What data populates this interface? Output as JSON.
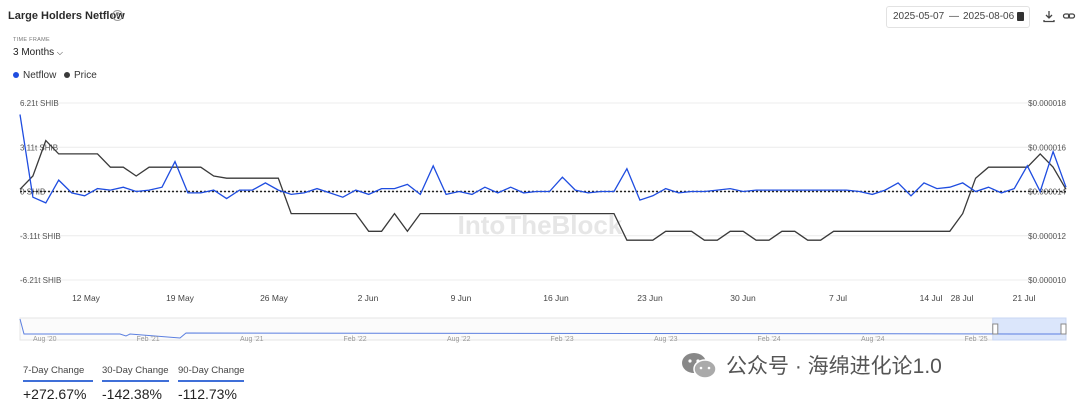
{
  "header": {
    "title": "Large Holders Netflow",
    "date_start": "2025-05-07",
    "date_sep": "—",
    "date_end": "2025-08-06"
  },
  "controls": {
    "timeframe_label": "TIME FRAME",
    "timeframe_value": "3 Months"
  },
  "legend": [
    {
      "name": "Netflow",
      "color": "#1f4de0"
    },
    {
      "name": "Price",
      "color": "#3a3a3a"
    }
  ],
  "watermark": "IntoTheBlock",
  "chart_data": {
    "type": "line",
    "x_ticks": [
      "12 May",
      "19 May",
      "26 May",
      "2 Jun",
      "9 Jun",
      "16 Jun",
      "23 Jun",
      "30 Jun",
      "7 Jul",
      "14 Jul",
      "28 Jul",
      "21 Jul"
    ],
    "y_left_ticks": [
      "6.21t SHIB",
      "3.11t SHIB",
      "0 SHIB",
      "-3.11t SHIB",
      "-6.21t SHIB"
    ],
    "y_right_ticks": [
      "$0.000018",
      "$0.000016",
      "$0.000014",
      "$0.000012",
      "$0.000010"
    ],
    "y_left_range": [
      -6.21,
      6.21
    ],
    "y_right_range": [
      1e-05,
      1.8e-05
    ],
    "series": [
      {
        "name": "Netflow",
        "unit": "t SHIB",
        "color": "#1f4de0",
        "values": [
          5.4,
          -0.4,
          -0.8,
          0.8,
          -0.1,
          -0.3,
          0.2,
          0.1,
          0.3,
          0.0,
          0.1,
          0.3,
          2.1,
          -0.1,
          -0.1,
          0.1,
          -0.5,
          0.1,
          0.1,
          0.6,
          0.1,
          -0.2,
          -0.1,
          0.2,
          -0.1,
          -0.4,
          0.1,
          -0.2,
          0.2,
          0.2,
          0.5,
          -0.2,
          1.8,
          -0.2,
          0.0,
          -0.2,
          0.3,
          -0.1,
          0.3,
          -0.1,
          0.0,
          0.0,
          1.0,
          0.1,
          -0.1,
          0.0,
          0.0,
          1.6,
          -0.6,
          -0.3,
          0.2,
          -0.1,
          0.0,
          0.0,
          0.1,
          0.2,
          0.0,
          0.1,
          0.1,
          0.1,
          0.1,
          0.1,
          0.1,
          0.1,
          0.1,
          0.0,
          -0.2,
          0.1,
          0.6,
          -0.3,
          0.6,
          0.2,
          0.3,
          0.6,
          0.0,
          0.3,
          -0.1,
          0.2,
          1.8,
          0.0,
          2.8,
          0.3
        ]
      },
      {
        "name": "Price",
        "unit": "USD",
        "color": "#3a3a3a",
        "values": [
          1.41e-05,
          1.47e-05,
          1.63e-05,
          1.57e-05,
          1.57e-05,
          1.57e-05,
          1.57e-05,
          1.51e-05,
          1.51e-05,
          1.47e-05,
          1.51e-05,
          1.51e-05,
          1.51e-05,
          1.51e-05,
          1.51e-05,
          1.47e-05,
          1.46e-05,
          1.46e-05,
          1.46e-05,
          1.46e-05,
          1.46e-05,
          1.3e-05,
          1.3e-05,
          1.3e-05,
          1.3e-05,
          1.3e-05,
          1.3e-05,
          1.22e-05,
          1.22e-05,
          1.3e-05,
          1.22e-05,
          1.3e-05,
          1.3e-05,
          1.3e-05,
          1.3e-05,
          1.3e-05,
          1.3e-05,
          1.3e-05,
          1.3e-05,
          1.3e-05,
          1.3e-05,
          1.3e-05,
          1.3e-05,
          1.3e-05,
          1.3e-05,
          1.3e-05,
          1.3e-05,
          1.18e-05,
          1.18e-05,
          1.18e-05,
          1.22e-05,
          1.22e-05,
          1.22e-05,
          1.18e-05,
          1.18e-05,
          1.22e-05,
          1.22e-05,
          1.18e-05,
          1.18e-05,
          1.22e-05,
          1.22e-05,
          1.18e-05,
          1.18e-05,
          1.22e-05,
          1.22e-05,
          1.22e-05,
          1.22e-05,
          1.22e-05,
          1.22e-05,
          1.22e-05,
          1.22e-05,
          1.22e-05,
          1.22e-05,
          1.3e-05,
          1.46e-05,
          1.51e-05,
          1.51e-05,
          1.51e-05,
          1.51e-05,
          1.57e-05,
          1.51e-05,
          1.41e-05
        ]
      }
    ],
    "zero_line_style": "dotted",
    "grid": true
  },
  "navigator": {
    "labels": [
      "Aug '20",
      "Feb '21",
      "Aug '21",
      "Feb '22",
      "Aug '22",
      "Feb '23",
      "Aug '23",
      "Feb '24",
      "Aug '24",
      "Feb '25"
    ],
    "selected_range": [
      0.93,
      1.0
    ]
  },
  "changes": [
    {
      "label": "7-Day Change",
      "value": "+272.67%"
    },
    {
      "label": "30-Day Change",
      "value": "-142.38%"
    },
    {
      "label": "90-Day Change",
      "value": "-112.73%"
    }
  ],
  "overlay": {
    "wechat_text": "公众号 · 海绵进化论1.0"
  }
}
